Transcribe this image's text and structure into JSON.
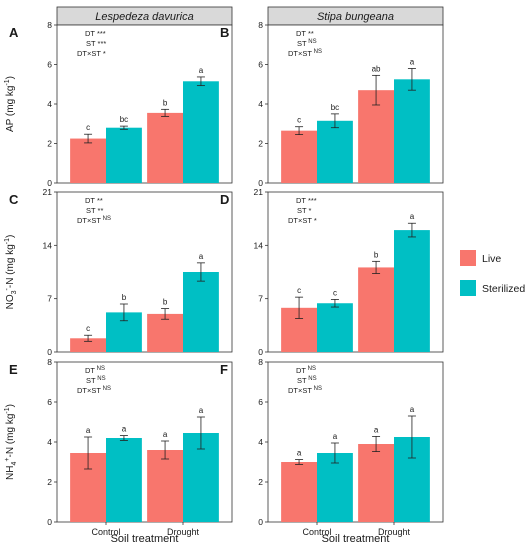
{
  "figure": {
    "x_title": "Soil treatment",
    "legend": [
      {
        "name": "Live",
        "color": "#F8766D"
      },
      {
        "name": "Sterilized",
        "color": "#00BFC4"
      }
    ],
    "row_ylabels": [
      {
        "pre": "AP (mg kg",
        "sup": "-1",
        "post": ")"
      },
      {
        "pre": "NO",
        "sub": "3",
        "sup": "-",
        "mid": "-N (mg kg",
        "sup2": "-1",
        "post": ")"
      },
      {
        "pre": "NH",
        "sub": "4",
        "sup": "+",
        "mid": "-N (mg kg",
        "sup2": "-1",
        "post": ")"
      }
    ],
    "column_headers": [
      "Lespedeza davurica",
      "Stipa bungeana"
    ]
  },
  "chart_data": [
    {
      "panel": "A",
      "type": "bar",
      "species": "Lespedeza davurica",
      "categories": [
        "Control",
        "Drought"
      ],
      "ylim": [
        0,
        8
      ],
      "yticks": [
        0,
        2,
        4,
        6,
        8
      ],
      "series": [
        {
          "name": "Live",
          "values": [
            2.25,
            3.55
          ],
          "errors": [
            0.22,
            0.18
          ],
          "letters": [
            "c",
            "b"
          ]
        },
        {
          "name": "Sterilized",
          "values": [
            2.8,
            5.15
          ],
          "errors": [
            0.08,
            0.22
          ],
          "letters": [
            "bc",
            "a"
          ]
        }
      ],
      "stats": [
        {
          "label": "DT",
          "sig": "***"
        },
        {
          "label": "ST",
          "sig": "***"
        },
        {
          "label": "DT×ST",
          "sig": "*"
        }
      ]
    },
    {
      "panel": "B",
      "type": "bar",
      "species": "Stipa bungeana",
      "categories": [
        "Control",
        "Drought"
      ],
      "ylim": [
        0,
        8
      ],
      "yticks": [
        0,
        2,
        4,
        6,
        8
      ],
      "series": [
        {
          "name": "Live",
          "values": [
            2.65,
            4.7
          ],
          "errors": [
            0.2,
            0.75
          ],
          "letters": [
            "c",
            "ab"
          ]
        },
        {
          "name": "Sterilized",
          "values": [
            3.15,
            5.25
          ],
          "errors": [
            0.35,
            0.55
          ],
          "letters": [
            "bc",
            "a"
          ]
        }
      ],
      "stats": [
        {
          "label": "DT",
          "sig": "**"
        },
        {
          "label": "ST",
          "sig": "NS"
        },
        {
          "label": "DT×ST",
          "sig": "NS"
        }
      ]
    },
    {
      "panel": "C",
      "type": "bar",
      "species": "Lespedeza davurica",
      "categories": [
        "Control",
        "Drought"
      ],
      "ylim": [
        0,
        21
      ],
      "yticks": [
        0,
        7,
        14,
        21
      ],
      "series": [
        {
          "name": "Live",
          "values": [
            1.8,
            5.0
          ],
          "errors": [
            0.4,
            0.7
          ],
          "letters": [
            "c",
            "b"
          ]
        },
        {
          "name": "Sterilized",
          "values": [
            5.2,
            10.5
          ],
          "errors": [
            1.1,
            1.2
          ],
          "letters": [
            "b",
            "a"
          ]
        }
      ],
      "stats": [
        {
          "label": "DT",
          "sig": "**"
        },
        {
          "label": "ST",
          "sig": "**"
        },
        {
          "label": "DT×ST",
          "sig": "NS"
        }
      ]
    },
    {
      "panel": "D",
      "type": "bar",
      "species": "Stipa bungeana",
      "categories": [
        "Control",
        "Drought"
      ],
      "ylim": [
        0,
        21
      ],
      "yticks": [
        0,
        7,
        14,
        21
      ],
      "series": [
        {
          "name": "Live",
          "values": [
            5.8,
            11.1
          ],
          "errors": [
            1.4,
            0.8
          ],
          "letters": [
            "c",
            "b"
          ]
        },
        {
          "name": "Sterilized",
          "values": [
            6.4,
            16.0
          ],
          "errors": [
            0.5,
            0.9
          ],
          "letters": [
            "c",
            "a"
          ]
        }
      ],
      "stats": [
        {
          "label": "DT",
          "sig": "***"
        },
        {
          "label": "ST",
          "sig": "*"
        },
        {
          "label": "DT×ST",
          "sig": "*"
        }
      ]
    },
    {
      "panel": "E",
      "type": "bar",
      "species": "Lespedeza davurica",
      "categories": [
        "Control",
        "Drought"
      ],
      "ylim": [
        0,
        8
      ],
      "yticks": [
        0,
        2,
        4,
        6,
        8
      ],
      "series": [
        {
          "name": "Live",
          "values": [
            3.45,
            3.6
          ],
          "errors": [
            0.8,
            0.45
          ],
          "letters": [
            "a",
            "a"
          ]
        },
        {
          "name": "Sterilized",
          "values": [
            4.2,
            4.45
          ],
          "errors": [
            0.12,
            0.8
          ],
          "letters": [
            "a",
            "a"
          ]
        }
      ],
      "stats": [
        {
          "label": "DT",
          "sig": "NS"
        },
        {
          "label": "ST",
          "sig": "NS"
        },
        {
          "label": "DT×ST",
          "sig": "NS"
        }
      ]
    },
    {
      "panel": "F",
      "type": "bar",
      "species": "Stipa bungeana",
      "categories": [
        "Control",
        "Drought"
      ],
      "ylim": [
        0,
        8
      ],
      "yticks": [
        0,
        2,
        4,
        6,
        8
      ],
      "series": [
        {
          "name": "Live",
          "values": [
            3.0,
            3.9
          ],
          "errors": [
            0.12,
            0.38
          ],
          "letters": [
            "a",
            "a"
          ]
        },
        {
          "name": "Sterilized",
          "values": [
            3.45,
            4.25
          ],
          "errors": [
            0.5,
            1.05
          ],
          "letters": [
            "a",
            "a"
          ]
        }
      ],
      "stats": [
        {
          "label": "DT",
          "sig": "NS"
        },
        {
          "label": "ST",
          "sig": "NS"
        },
        {
          "label": "DT×ST",
          "sig": "NS"
        }
      ]
    }
  ]
}
